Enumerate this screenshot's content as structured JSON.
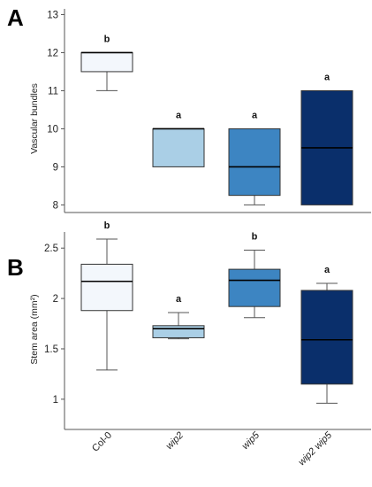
{
  "chart_data": [
    {
      "type": "box",
      "panel_label": "A",
      "ylabel": "Vascular bundles",
      "ylim": [
        7.8,
        13.15
      ],
      "yticks": [
        8,
        9,
        10,
        11,
        12,
        13
      ],
      "ytick_labels": [
        "8",
        "9",
        "10",
        "11",
        "12",
        "13"
      ],
      "grid": false,
      "categories": [
        "Col-0",
        "wip2",
        "wip5",
        "wip2 wip5"
      ],
      "boxes": [
        {
          "category": "Col-0",
          "whisker_low": 11,
          "q1": 11.5,
          "median": 12,
          "q3": 12,
          "whisker_high": 12,
          "significance": "b",
          "color": "#f3f7fc"
        },
        {
          "category": "wip2",
          "whisker_low": 9,
          "q1": 9,
          "median": 10,
          "q3": 10,
          "whisker_high": 10,
          "significance": "a",
          "color": "#aacfe6"
        },
        {
          "category": "wip5",
          "whisker_low": 8,
          "q1": 8.25,
          "median": 9,
          "q3": 10,
          "whisker_high": 10,
          "significance": "a",
          "color": "#3d85c2"
        },
        {
          "category": "wip2 wip5",
          "whisker_low": 8,
          "q1": 8,
          "median": 9.5,
          "q3": 11,
          "whisker_high": 11,
          "significance": "a",
          "color": "#0a2f6b"
        }
      ]
    },
    {
      "type": "box",
      "panel_label": "B",
      "ylabel": "Stem area (mm²)",
      "ylim": [
        0.7,
        2.66
      ],
      "yticks": [
        1,
        1.5,
        2,
        2.5
      ],
      "ytick_labels": [
        "1",
        "1.5",
        "2",
        "2.5"
      ],
      "grid": false,
      "categories": [
        "Col-0",
        "wip2",
        "wip5",
        "wip2 wip5"
      ],
      "category_labels": [
        "Col-0",
        "wip2",
        "wip5",
        "wip2 wip5"
      ],
      "boxes": [
        {
          "category": "Col-0",
          "whisker_low": 1.29,
          "q1": 1.88,
          "median": 2.17,
          "q3": 2.34,
          "whisker_high": 2.59,
          "significance": "b",
          "color": "#f3f7fc"
        },
        {
          "category": "wip2",
          "whisker_low": 1.6,
          "q1": 1.61,
          "median": 1.7,
          "q3": 1.73,
          "whisker_high": 1.86,
          "significance": "a",
          "color": "#aacfe6"
        },
        {
          "category": "wip5",
          "whisker_low": 1.81,
          "q1": 1.92,
          "median": 2.18,
          "q3": 2.29,
          "whisker_high": 2.48,
          "significance": "b",
          "color": "#3d85c2"
        },
        {
          "category": "wip2 wip5",
          "whisker_low": 0.96,
          "q1": 1.15,
          "median": 1.59,
          "q3": 2.08,
          "whisker_high": 2.15,
          "significance": "a",
          "color": "#0a2f6b"
        }
      ]
    }
  ]
}
